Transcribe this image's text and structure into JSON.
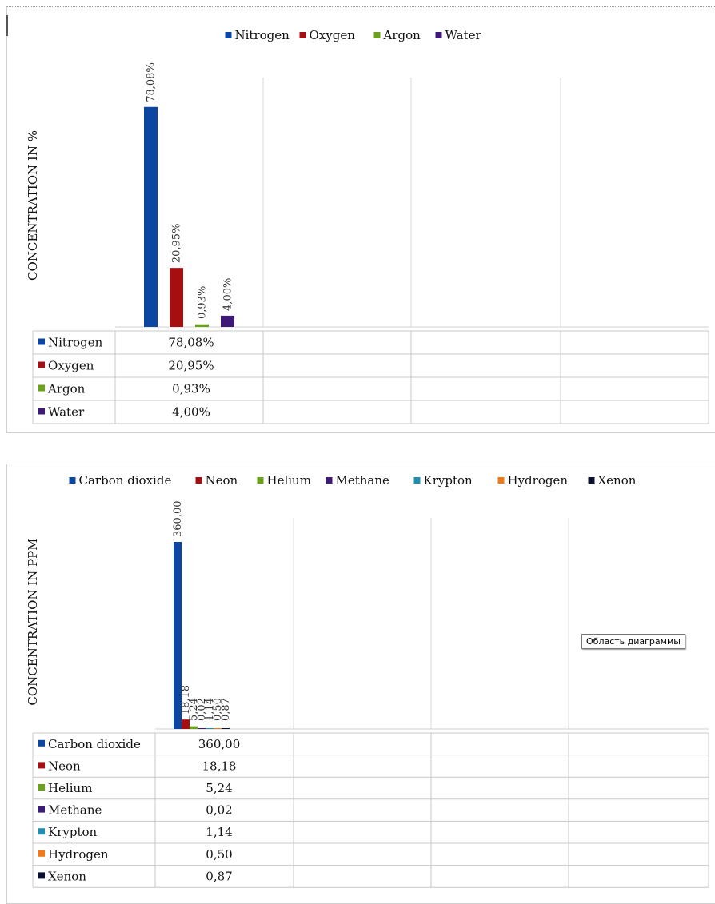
{
  "chart_data": [
    {
      "type": "bar",
      "ylabel": "CONCENTRATION IN %",
      "legend_position": "top",
      "data_table": true,
      "grid": false,
      "categories": [
        ""
      ],
      "series": [
        {
          "name": "Nitrogen",
          "values": [
            78.08
          ],
          "label": "78,08%",
          "table_value": "78,08%",
          "color": "#0b47a1"
        },
        {
          "name": "Oxygen",
          "values": [
            20.95
          ],
          "label": "20,95%",
          "table_value": "20,95%",
          "color": "#a50f12"
        },
        {
          "name": "Argon",
          "values": [
            0.93
          ],
          "label": "0,93%",
          "table_value": "0,93%",
          "color": "#6aa219"
        },
        {
          "name": "Water",
          "values": [
            4.0
          ],
          "label": "4,00%",
          "table_value": "4,00%",
          "color": "#3d1a78"
        }
      ],
      "ylim": [
        0,
        80
      ]
    },
    {
      "type": "bar",
      "ylabel": "CONCENTRATION IN PPM",
      "legend_position": "top",
      "data_table": true,
      "grid": false,
      "categories": [
        ""
      ],
      "series": [
        {
          "name": "Carbon dioxide",
          "values": [
            360.0
          ],
          "label": "360,00",
          "table_value": "360,00",
          "color": "#0b47a1"
        },
        {
          "name": "Neon",
          "values": [
            18.18
          ],
          "label": "18,18",
          "table_value": "18,18",
          "color": "#a50f12"
        },
        {
          "name": "Helium",
          "values": [
            5.24
          ],
          "label": "5,24",
          "table_value": "5,24",
          "color": "#6aa219"
        },
        {
          "name": "Methane",
          "values": [
            0.02
          ],
          "label": "0,02",
          "table_value": "0,02",
          "color": "#3d1a78"
        },
        {
          "name": "Krypton",
          "values": [
            1.14
          ],
          "label": "1,14",
          "table_value": "1,14",
          "color": "#1d8fb0"
        },
        {
          "name": "Hydrogen",
          "values": [
            0.5
          ],
          "label": "0,50",
          "table_value": "0,50",
          "color": "#f07a1a"
        },
        {
          "name": "Xenon",
          "values": [
            0.87
          ],
          "label": "0,87",
          "table_value": "0,87",
          "color": "#0a1030"
        }
      ],
      "ylim": [
        0,
        360
      ]
    }
  ],
  "tooltip": {
    "text": "Область диаграммы"
  }
}
